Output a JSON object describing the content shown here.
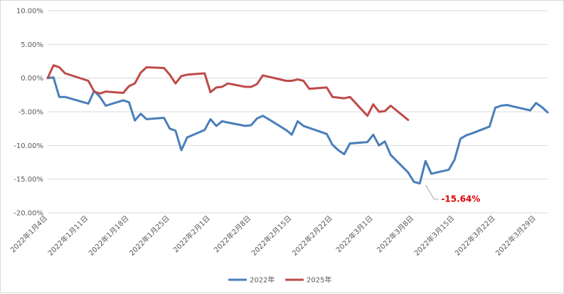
{
  "chart_data": {
    "type": "line",
    "title": "",
    "xlabel": "",
    "ylabel": "",
    "y_unit": "%",
    "ylim": [
      -20,
      10
    ],
    "y_ticks": [
      10,
      5,
      0,
      -5,
      -10,
      -15,
      -20
    ],
    "y_tick_labels": [
      "10.00%",
      "5.00%",
      "0.00%",
      "-5.00%",
      "-10.00%",
      "-15.00%",
      "-20.00%"
    ],
    "x_ticks": [
      "2022年1月4日",
      "2022年1月11日",
      "2022年1月18日",
      "2022年1月25日",
      "2022年2月1日",
      "2022年2月8日",
      "2022年2月15日",
      "2022年2月22日",
      "2022年3月1日",
      "2022年3月8日",
      "2022年3月15日",
      "2022年3月22日",
      "2022年3月29日"
    ],
    "x_ticks_offset": [
      0,
      7,
      14,
      21,
      28,
      35,
      42,
      49,
      56,
      63,
      70,
      77,
      84
    ],
    "x_range_offset": [
      0,
      86
    ],
    "grid": true,
    "legend_position": "bottom",
    "series": [
      {
        "name": "2022年",
        "color": "#4a7ebb",
        "x": [
          0,
          1,
          2,
          3,
          7,
          8,
          9,
          10,
          13,
          14,
          15,
          16,
          17,
          20,
          21,
          22,
          23,
          24,
          27,
          28,
          29,
          30,
          31,
          34,
          35,
          36,
          37,
          38,
          41,
          42,
          43,
          44,
          45,
          48,
          49,
          50,
          51,
          52,
          55,
          56,
          57,
          58,
          59,
          62,
          63,
          64,
          65,
          66,
          69,
          70,
          71,
          72,
          73,
          76,
          77,
          78,
          79,
          80,
          83,
          84,
          85,
          86
        ],
        "y": [
          0.0,
          0.1,
          -2.8,
          -2.8,
          -3.8,
          -1.9,
          -2.8,
          -4.1,
          -3.3,
          -3.6,
          -6.3,
          -5.3,
          -6.1,
          -5.9,
          -7.5,
          -7.8,
          -10.7,
          -8.8,
          -7.7,
          -6.1,
          -7.1,
          -6.4,
          -6.6,
          -7.1,
          -7.0,
          -6.0,
          -5.6,
          -6.1,
          -7.7,
          -8.4,
          -6.4,
          -7.1,
          -7.4,
          -8.3,
          -9.9,
          -10.7,
          -11.3,
          -9.7,
          -9.5,
          -8.4,
          -10.0,
          -9.4,
          -11.4,
          -14.0,
          -15.4,
          -15.64,
          -12.3,
          -14.2,
          -13.6,
          -12.1,
          -9.0,
          -8.5,
          -8.2,
          -7.2,
          -4.4,
          -4.1,
          -4.0,
          -4.2,
          -4.8,
          -3.7,
          -4.3,
          -5.1
        ]
      },
      {
        "name": "2025年",
        "color": "#be4b48",
        "x": [
          0,
          1,
          2,
          3,
          7,
          8,
          9,
          10,
          13,
          14,
          15,
          16,
          17,
          20,
          21,
          22,
          23,
          24,
          27,
          28,
          29,
          30,
          31,
          34,
          35,
          36,
          37,
          38,
          41,
          42,
          43,
          44,
          45,
          48,
          49,
          50,
          51,
          52,
          55,
          56,
          57,
          58,
          59,
          62
        ],
        "y": [
          0.0,
          1.9,
          1.6,
          0.7,
          -0.4,
          -2.0,
          -2.3,
          -2.0,
          -2.2,
          -1.2,
          -0.8,
          0.8,
          1.6,
          1.5,
          0.5,
          -0.8,
          0.3,
          0.5,
          0.7,
          -2.1,
          -1.4,
          -1.3,
          -0.8,
          -1.3,
          -1.3,
          -0.9,
          0.4,
          0.2,
          -0.4,
          -0.4,
          -0.2,
          -0.4,
          -1.6,
          -1.4,
          -2.8,
          -2.9,
          -3.0,
          -2.8,
          -5.6,
          -3.9,
          -5.0,
          -4.9,
          -4.1,
          -6.2
        ]
      }
    ],
    "annotations": [
      {
        "label": "-15.64%",
        "series": "2022年",
        "x": 65,
        "y": -15.64
      }
    ]
  }
}
